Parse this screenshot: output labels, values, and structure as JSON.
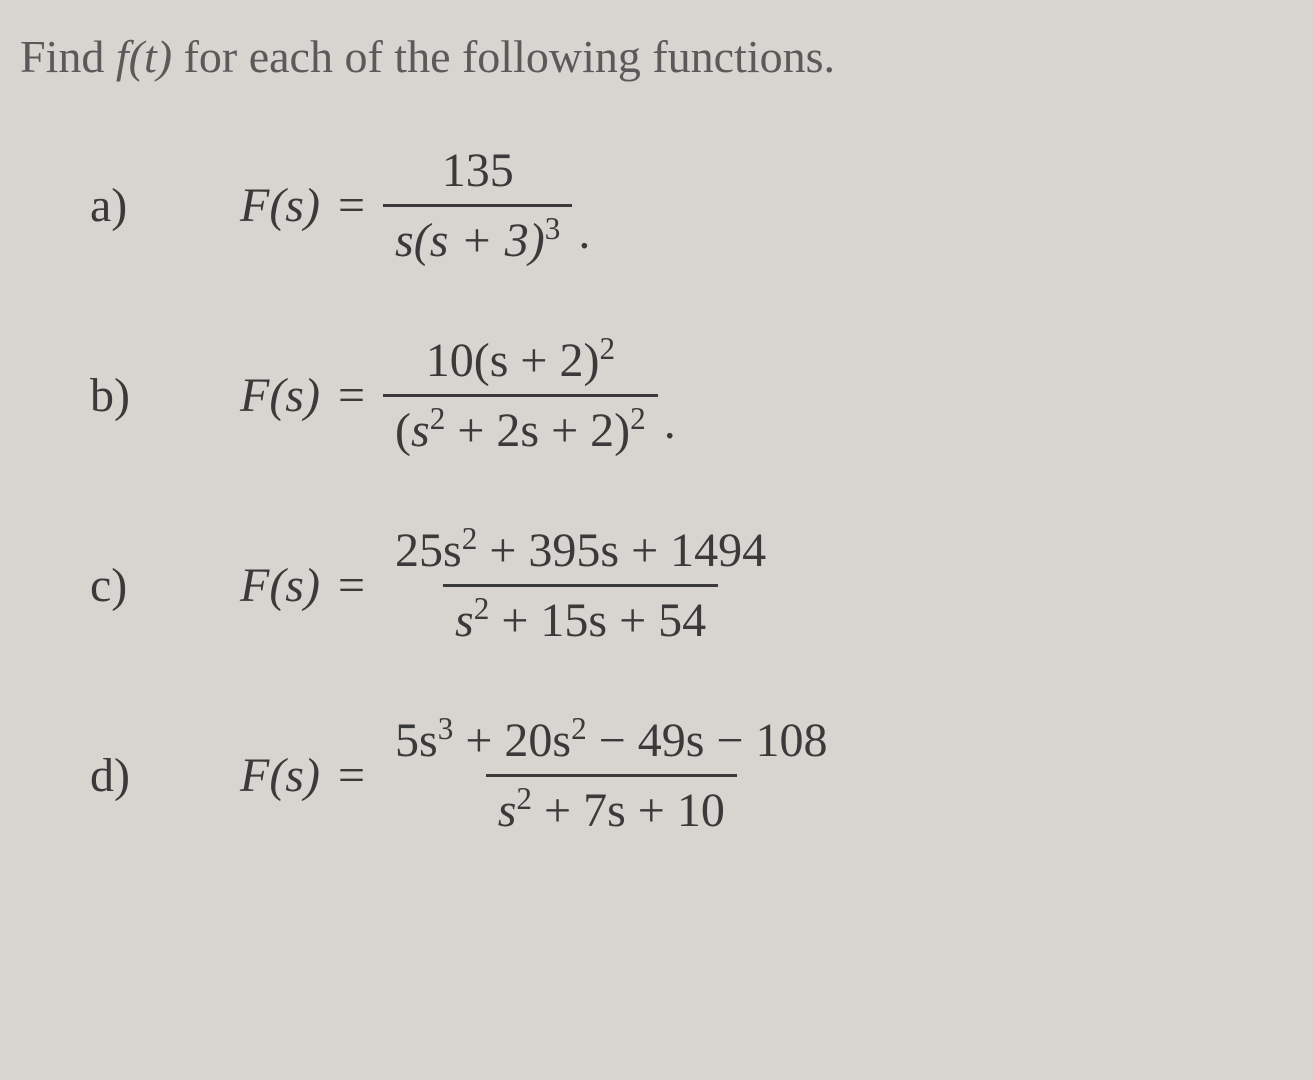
{
  "prompt": {
    "text_before_f": "Find ",
    "f_of_t": "f(t)",
    "text_after": " for each of the following functions."
  },
  "problems": [
    {
      "label": "a)",
      "func": "F(s)",
      "numerator": "135",
      "denominator_parts": {
        "prefix": "s(s + 3)",
        "exponent": "3"
      },
      "has_period": true
    },
    {
      "label": "b)",
      "func": "F(s)",
      "numerator_parts": {
        "prefix": "10(s + 2)",
        "exponent": "2"
      },
      "denominator_parts": {
        "prefix": "(s",
        "exp1": "2",
        "mid": " + 2s + 2)",
        "exp2": "2"
      },
      "has_period": true
    },
    {
      "label": "c)",
      "func": "F(s)",
      "numerator_parts": {
        "prefix": "25s",
        "exp1": "2",
        "rest": " + 395s + 1494"
      },
      "denominator_parts": {
        "prefix": "s",
        "exp1": "2",
        "rest": " + 15s + 54"
      },
      "has_period": false
    },
    {
      "label": "d)",
      "func": "F(s)",
      "numerator_parts": {
        "prefix": "5s",
        "exp1": "3",
        "mid": " + 20s",
        "exp2": "2",
        "rest": " − 49s − 108"
      },
      "denominator_parts": {
        "prefix": "s",
        "exp1": "2",
        "rest": " + 7s + 10"
      },
      "has_period": false
    }
  ],
  "styling": {
    "background_color": "#d8d4cf",
    "text_color": "#3a3a3a",
    "prompt_color": "#5a5a5a",
    "font_family": "Georgia, Times New Roman, serif",
    "prompt_fontsize": 46,
    "equation_fontsize": 48,
    "fraction_bar_thickness": 3
  }
}
